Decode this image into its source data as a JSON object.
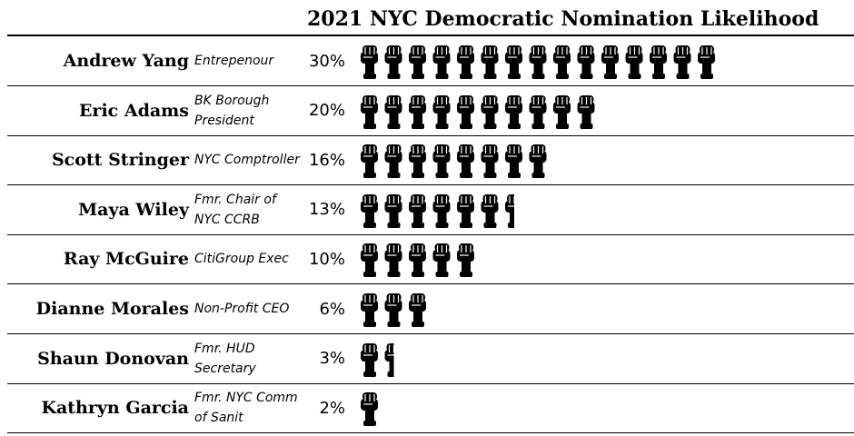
{
  "chart_data": {
    "type": "pictograph",
    "title": "2021 NYC Democratic Nomination Likelihood",
    "unit_per_icon": 2,
    "icon": "raised-fist-icon",
    "rows": [
      {
        "name": "Andrew Yang",
        "role": "Entrepenour",
        "value": 30,
        "label": "30%"
      },
      {
        "name": "Eric Adams",
        "role": "BK Borough President",
        "value": 20,
        "label": "20%"
      },
      {
        "name": "Scott Stringer",
        "role": "NYC Comptroller",
        "value": 16,
        "label": "16%"
      },
      {
        "name": "Maya Wiley",
        "role": "Fmr. Chair of NYC CCRB",
        "value": 13,
        "label": "13%"
      },
      {
        "name": "Ray McGuire",
        "role": "CitiGroup Exec",
        "value": 10,
        "label": "10%"
      },
      {
        "name": "Dianne Morales",
        "role": "Non-Profit CEO",
        "value": 6,
        "label": "6%"
      },
      {
        "name": "Shaun Donovan",
        "role": "Fmr. HUD Secretary",
        "value": 3,
        "label": "3%"
      },
      {
        "name": "Kathryn Garcia",
        "role": "Fmr. NYC Comm of Sanit",
        "value": 2,
        "label": "2%"
      }
    ]
  }
}
